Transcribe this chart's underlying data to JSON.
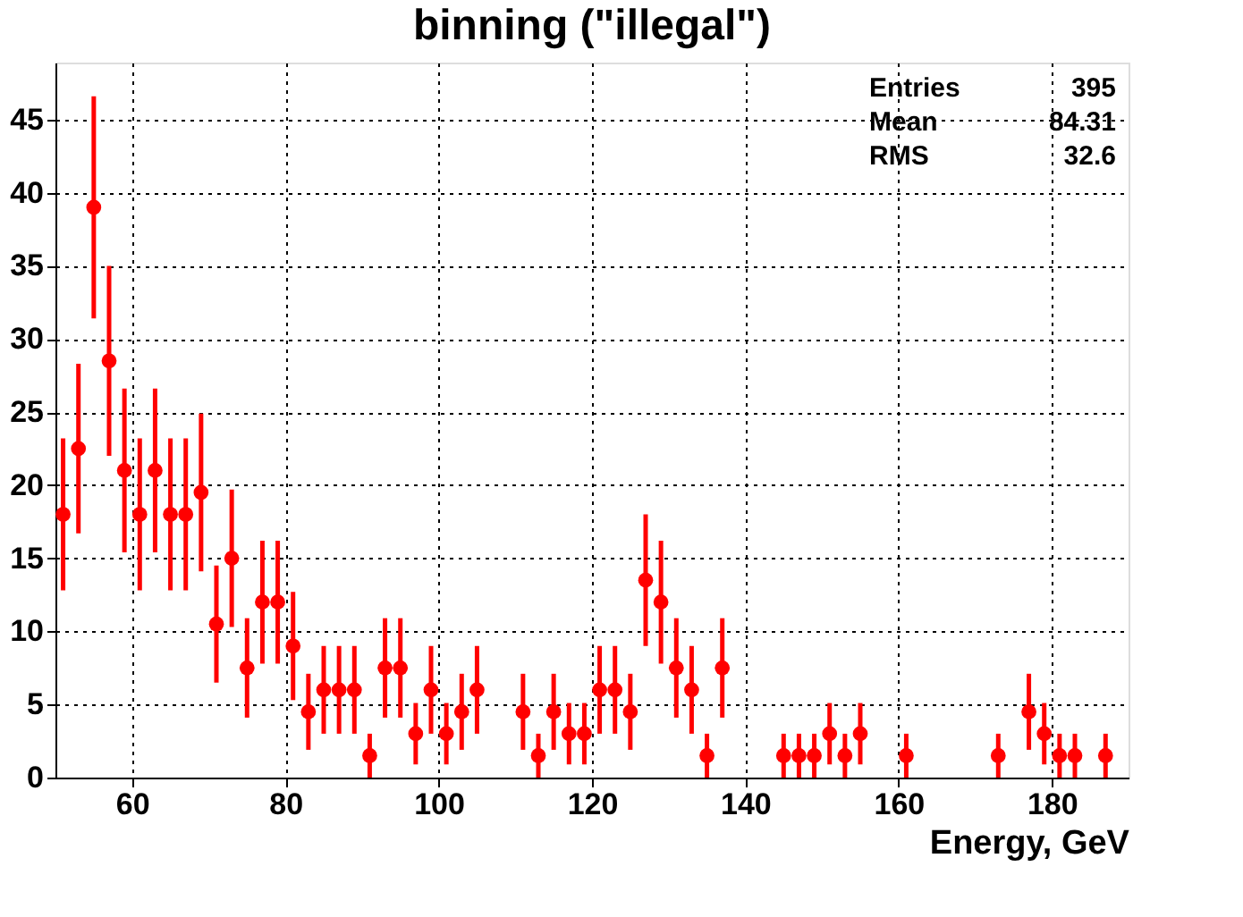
{
  "chart_data": {
    "type": "scatter",
    "title": "binning (\"illegal\")",
    "xlabel": "Energy, GeV",
    "x": [
      51,
      53,
      55,
      57,
      59,
      61,
      63,
      65,
      67,
      69,
      71,
      73,
      75,
      77,
      79,
      81,
      83,
      85,
      87,
      89,
      91,
      93,
      95,
      97,
      99,
      101,
      103,
      105,
      111,
      113,
      115,
      117,
      119,
      121,
      123,
      125,
      127,
      129,
      131,
      133,
      135,
      137,
      145,
      147,
      149,
      151,
      153,
      155,
      161,
      173,
      177,
      179,
      181,
      183,
      187
    ],
    "values": [
      18,
      22.5,
      39,
      28.5,
      21,
      18,
      21,
      18,
      18,
      19.5,
      10.5,
      15,
      7.5,
      12,
      12,
      9,
      4.5,
      6,
      6,
      6,
      1.5,
      7.5,
      7.5,
      3,
      6,
      3,
      4.5,
      6,
      4.5,
      1.5,
      4.5,
      3,
      3,
      6,
      6,
      4.5,
      13.5,
      12,
      7.5,
      6,
      1.5,
      7.5,
      1.5,
      1.5,
      1.5,
      3,
      1.5,
      3,
      1.5,
      1.5,
      4.5,
      3,
      1.5,
      1.5,
      1.5
    ],
    "errors": [
      5.2,
      5.8,
      7.6,
      6.5,
      5.6,
      5.2,
      5.6,
      5.2,
      5.2,
      5.4,
      4.0,
      4.7,
      3.4,
      4.2,
      4.2,
      3.7,
      2.6,
      3.0,
      3.0,
      3.0,
      1.5,
      3.4,
      3.4,
      2.1,
      3.0,
      2.1,
      2.6,
      3.0,
      2.6,
      1.5,
      2.6,
      2.1,
      2.1,
      3.0,
      3.0,
      2.6,
      4.5,
      4.2,
      3.4,
      3.0,
      1.5,
      3.4,
      1.5,
      1.5,
      1.5,
      2.1,
      1.5,
      2.1,
      1.5,
      1.5,
      2.6,
      2.1,
      1.5,
      1.5,
      1.5
    ],
    "color": "#ff0000",
    "marker": "circle",
    "xlim": [
      50,
      190
    ],
    "xticks": [
      60,
      80,
      100,
      120,
      140,
      160,
      180
    ],
    "ylim": [
      0,
      48.9
    ],
    "yticks": [
      0,
      5,
      10,
      15,
      20,
      25,
      30,
      35,
      40,
      45
    ],
    "grid": true,
    "annotations": [
      "Entries",
      "395",
      "Mean",
      "84.31",
      "RMS",
      "32.6"
    ]
  }
}
